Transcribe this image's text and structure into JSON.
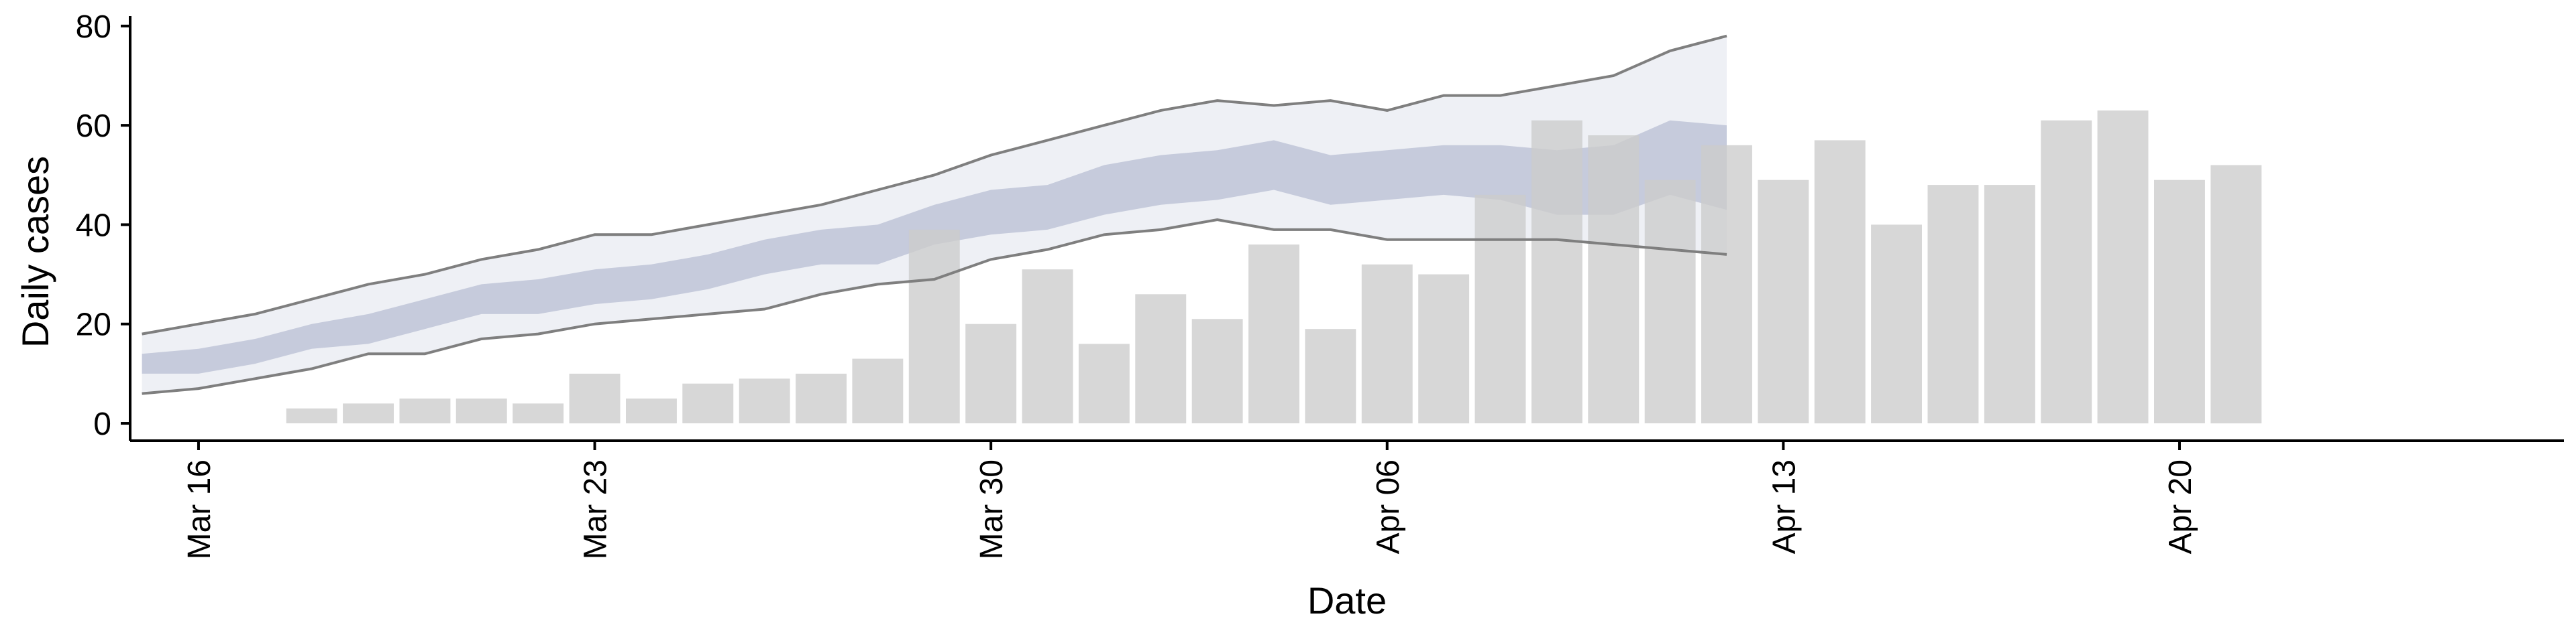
{
  "chart_data": {
    "type": "bar",
    "xlabel": "Date",
    "ylabel": "Daily cases",
    "ylim": [
      -3.5,
      82
    ],
    "yticks": [
      0,
      20,
      40,
      60,
      80
    ],
    "xlim": [
      "2020-03-14 19:00",
      "2020-04-26 19:00"
    ],
    "xtick_dates": [
      "2020-03-16",
      "2020-03-23",
      "2020-03-30",
      "2020-04-06",
      "2020-04-13",
      "2020-04-20"
    ],
    "xtick_labels": [
      "Mar 16",
      "Mar 23",
      "Mar 30",
      "Apr 06",
      "Apr 13",
      "Apr 20"
    ],
    "legend": "none",
    "grid": false,
    "series": [
      {
        "type": "bar",
        "color": "#cccccc",
        "x": [
          "2020-03-18",
          "2020-03-19",
          "2020-03-20",
          "2020-03-21",
          "2020-03-22",
          "2020-03-23",
          "2020-03-24",
          "2020-03-25",
          "2020-03-26",
          "2020-03-27",
          "2020-03-28",
          "2020-03-29",
          "2020-03-30",
          "2020-03-31",
          "2020-04-01",
          "2020-04-02",
          "2020-04-03",
          "2020-04-04",
          "2020-04-05",
          "2020-04-06",
          "2020-04-07",
          "2020-04-08",
          "2020-04-09",
          "2020-04-10",
          "2020-04-11",
          "2020-04-12",
          "2020-04-13",
          "2020-04-14",
          "2020-04-15",
          "2020-04-16",
          "2020-04-17",
          "2020-04-18",
          "2020-04-19",
          "2020-04-20",
          "2020-04-21"
        ],
        "values": [
          3,
          4,
          5,
          5,
          4,
          10,
          5,
          8,
          9,
          10,
          13,
          39,
          20,
          31,
          16,
          26,
          21,
          36,
          19,
          32,
          30,
          46,
          61,
          58,
          49,
          56,
          49,
          57,
          40,
          48,
          48,
          61,
          63,
          49,
          52
        ]
      },
      {
        "type": "band",
        "color": "#eef0f5",
        "x": [
          "2020-03-15",
          "2020-03-16",
          "2020-03-17",
          "2020-03-18",
          "2020-03-19",
          "2020-03-20",
          "2020-03-21",
          "2020-03-22",
          "2020-03-23",
          "2020-03-24",
          "2020-03-25",
          "2020-03-26",
          "2020-03-27",
          "2020-03-28",
          "2020-03-29",
          "2020-03-30",
          "2020-03-31",
          "2020-04-01",
          "2020-04-02",
          "2020-04-03",
          "2020-04-04",
          "2020-04-05",
          "2020-04-06",
          "2020-04-07",
          "2020-04-08",
          "2020-04-09",
          "2020-04-10",
          "2020-04-11",
          "2020-04-12"
        ],
        "upper": [
          18,
          20,
          22,
          25,
          28,
          30,
          33,
          35,
          38,
          38,
          40,
          42,
          44,
          47,
          50,
          54,
          57,
          60,
          63,
          65,
          64,
          65,
          63,
          66,
          66,
          68,
          70,
          75,
          78
        ],
        "lower": [
          6,
          7,
          9,
          11,
          14,
          14,
          17,
          18,
          20,
          21,
          22,
          23,
          26,
          28,
          29,
          33,
          35,
          38,
          39,
          41,
          39,
          39,
          37,
          37,
          37,
          37,
          36,
          35,
          34
        ]
      },
      {
        "type": "band",
        "color": "#c6cbdc",
        "x": [
          "2020-03-15",
          "2020-03-16",
          "2020-03-17",
          "2020-03-18",
          "2020-03-19",
          "2020-03-20",
          "2020-03-21",
          "2020-03-22",
          "2020-03-23",
          "2020-03-24",
          "2020-03-25",
          "2020-03-26",
          "2020-03-27",
          "2020-03-28",
          "2020-03-29",
          "2020-03-30",
          "2020-03-31",
          "2020-04-01",
          "2020-04-02",
          "2020-04-03",
          "2020-04-04",
          "2020-04-05",
          "2020-04-06",
          "2020-04-07",
          "2020-04-08",
          "2020-04-09",
          "2020-04-10",
          "2020-04-11",
          "2020-04-12"
        ],
        "upper": [
          14,
          15,
          17,
          20,
          22,
          25,
          28,
          29,
          31,
          32,
          34,
          37,
          39,
          40,
          44,
          47,
          48,
          52,
          54,
          55,
          57,
          54,
          55,
          56,
          56,
          55,
          56,
          61,
          60
        ],
        "lower": [
          10,
          10,
          12,
          15,
          16,
          19,
          22,
          22,
          24,
          25,
          27,
          30,
          32,
          32,
          36,
          38,
          39,
          42,
          44,
          45,
          47,
          44,
          45,
          46,
          45,
          42,
          42,
          46,
          43
        ]
      }
    ]
  }
}
